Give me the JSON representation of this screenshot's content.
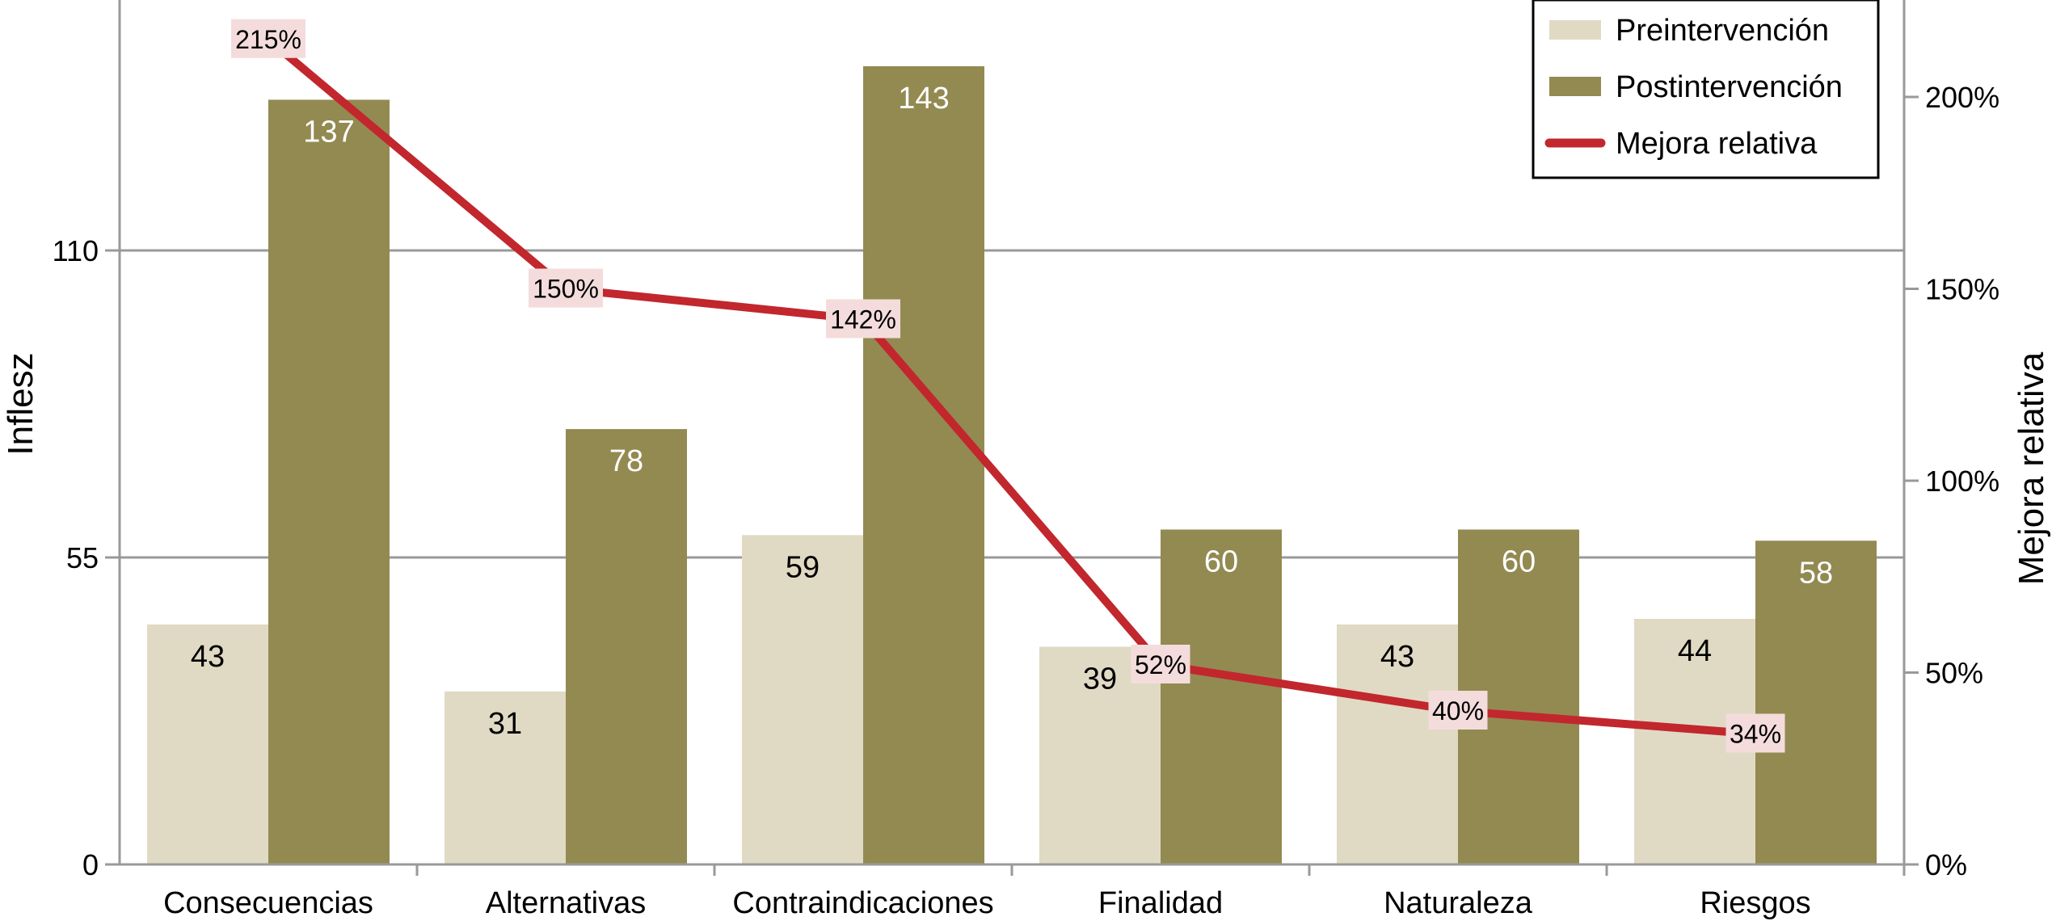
{
  "chart_data": {
    "type": "bar",
    "categories": [
      "Consecuencias",
      "Alternativas",
      "Contraindicaciones",
      "Finalidad",
      "Naturaleza",
      "Riesgos"
    ],
    "series": [
      {
        "name": "Preintervención",
        "type": "bar",
        "axis": "left",
        "color": "#e0dac4",
        "label_color": "#000000",
        "values": [
          43,
          31,
          59,
          39,
          43,
          44
        ]
      },
      {
        "name": "Postintervención",
        "type": "bar",
        "axis": "left",
        "color": "#938a52",
        "label_color": "#ffffff",
        "values": [
          137,
          78,
          143,
          60,
          60,
          58
        ]
      },
      {
        "name": "Mejora relativa",
        "type": "line",
        "axis": "right",
        "color": "#c1272d",
        "label_bg": "#f4dcdc",
        "values": [
          215,
          150,
          142,
          52,
          40,
          34
        ],
        "labels": [
          "215%",
          "150%",
          "142%",
          "52%",
          "40%",
          "34%"
        ]
      }
    ],
    "ylabel": "Inflesz",
    "y2label": "Mejora relativa",
    "ylim": [
      0,
      155
    ],
    "yticks": [
      0,
      55,
      110
    ],
    "y2lim": [
      0,
      227
    ],
    "y2ticks": [
      "0%",
      "50%",
      "100%",
      "150%",
      "200%"
    ],
    "y2tick_values": [
      0,
      50,
      100,
      150,
      200
    ],
    "grid": true,
    "grid_color": "#999999",
    "legend_position": "top-right"
  }
}
